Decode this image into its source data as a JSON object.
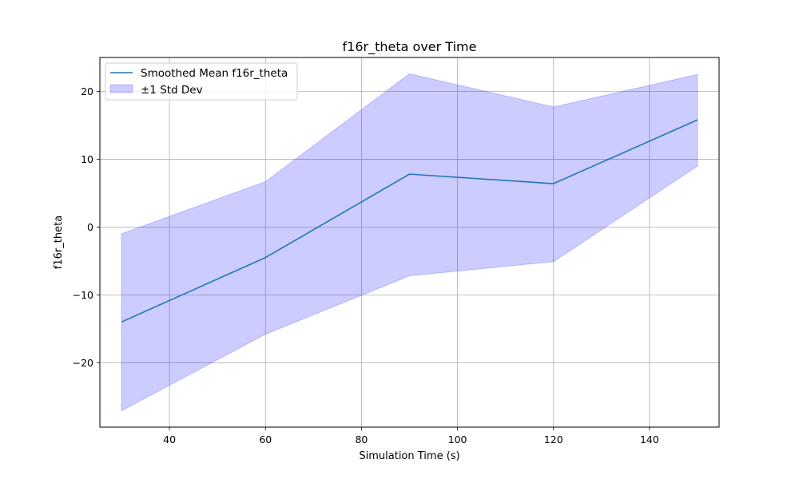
{
  "chart_data": {
    "type": "line",
    "title": "f16r_theta over Time",
    "xlabel": "Simulation Time (s)",
    "ylabel": "f16r_theta",
    "x": [
      30,
      60,
      90,
      120,
      150
    ],
    "series": [
      {
        "name": "Smoothed Mean f16r_theta",
        "kind": "line",
        "color": "#1f77b4",
        "values": [
          -14.0,
          -4.5,
          7.8,
          6.4,
          15.8
        ]
      },
      {
        "name": "±1 Std Dev",
        "kind": "band",
        "color": "#0000ff",
        "lower": [
          -27.1,
          -15.8,
          -7.2,
          -5.1,
          9.0
        ],
        "upper": [
          -1.0,
          6.7,
          22.6,
          17.7,
          22.5
        ]
      }
    ],
    "xlim": [
      25.5,
      154.5
    ],
    "ylim": [
      -29.5,
      25.0
    ],
    "xticks": [
      40,
      60,
      80,
      100,
      120,
      140
    ],
    "yticks": [
      -20,
      -10,
      0,
      10,
      20
    ],
    "grid": true,
    "legend_position": "top-left"
  }
}
